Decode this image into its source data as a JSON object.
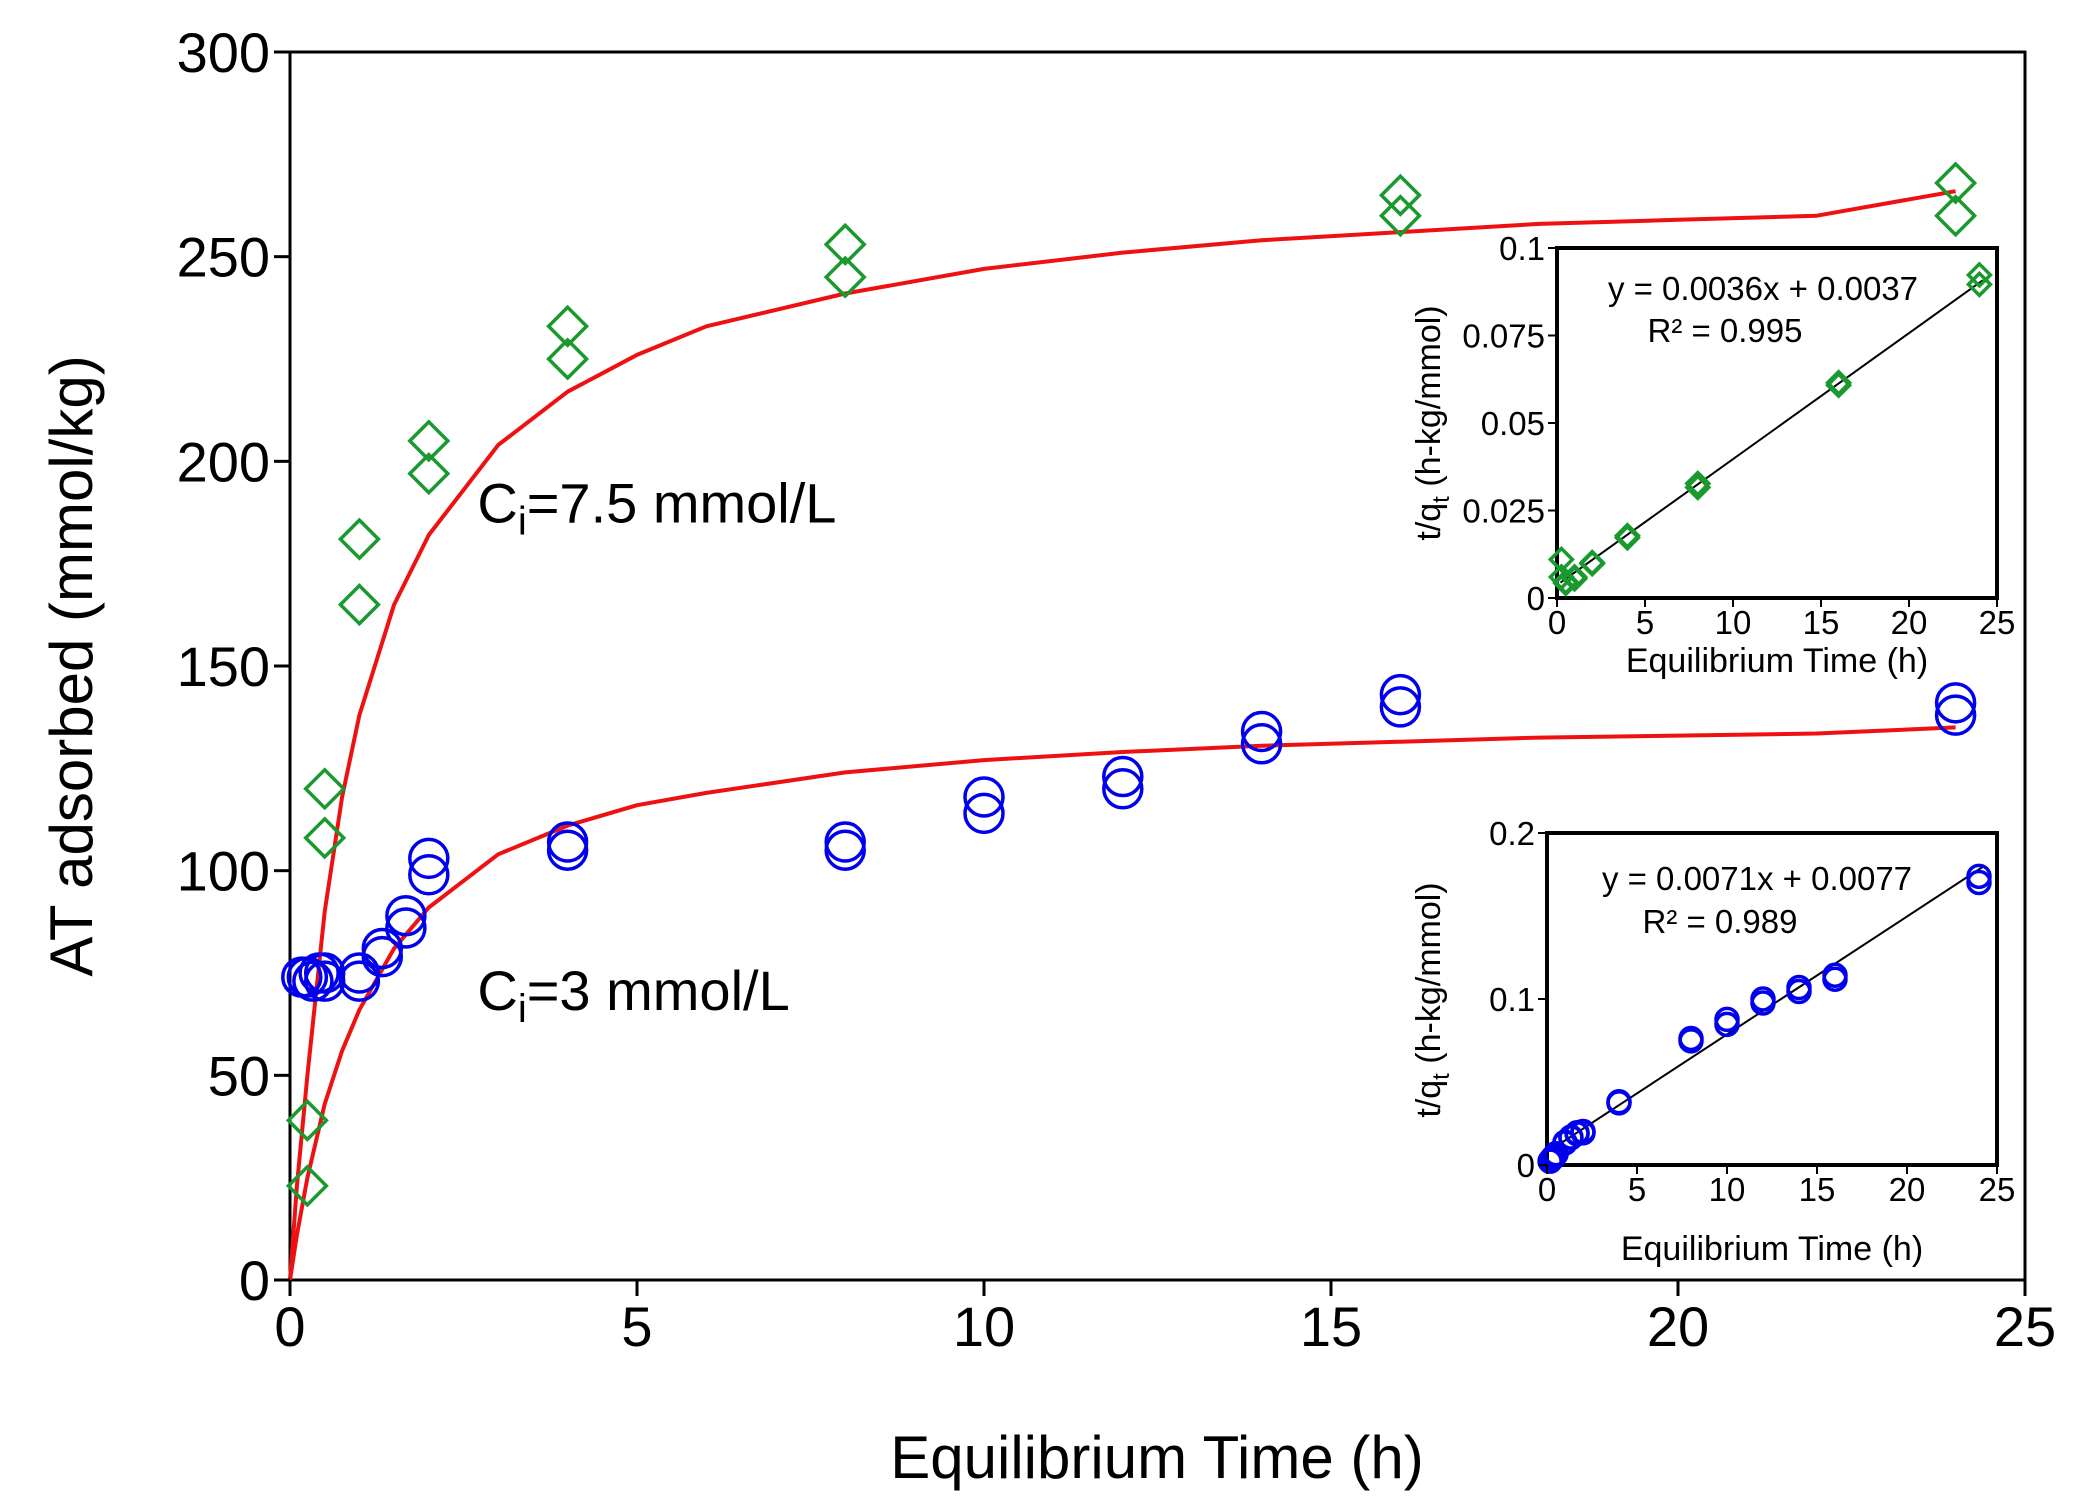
{
  "chart_data": [
    {
      "type": "scatter",
      "xlabel": "Equilibrium Time (h)",
      "ylabel": "AT adsorbed (mmol/kg)",
      "xlim": [
        0,
        25
      ],
      "ylim": [
        0,
        300
      ],
      "xticks": [
        "0",
        "5",
        "10",
        "15",
        "20",
        "25"
      ],
      "yticks": [
        "0",
        "50",
        "100",
        "150",
        "200",
        "250",
        "300"
      ],
      "grid": false,
      "legend": "none",
      "annotations": [
        {
          "id": "ci75",
          "base": "C",
          "sub": "i",
          "rest": "=7.5 mmol/L",
          "x": 2.7,
          "y": 185
        },
        {
          "id": "ci3",
          "base": "C",
          "sub": "i",
          "rest": "=3 mmol/L",
          "x": 2.7,
          "y": 66
        }
      ],
      "series": [
        {
          "id": "hi_points",
          "marker": "diamond",
          "color": "#1a9a2e",
          "x": [
            0.25,
            0.25,
            0.5,
            0.5,
            1,
            1,
            2,
            2,
            4,
            4,
            8,
            8,
            16,
            16,
            24,
            24
          ],
          "y": [
            23,
            39,
            108,
            120,
            165,
            181,
            197,
            205,
            225,
            233,
            245,
            253,
            260,
            265,
            260,
            268
          ]
        },
        {
          "id": "lo_points",
          "marker": "circle",
          "color": "#0000ee",
          "x": [
            0.17,
            0.25,
            0.33,
            0.42,
            0.5,
            0.5,
            1,
            1,
            1.33,
            1.33,
            1.67,
            1.67,
            2,
            2,
            4,
            4,
            8,
            8,
            10,
            10,
            12,
            12,
            14,
            14,
            16,
            16,
            24,
            24
          ],
          "y": [
            74,
            74,
            73,
            75,
            73,
            75,
            73,
            75,
            79,
            81,
            86,
            89,
            99,
            103,
            105,
            107,
            105,
            107,
            114,
            118,
            120,
            123,
            131,
            134,
            140,
            143,
            138,
            141
          ]
        },
        {
          "id": "hi_fit",
          "kind": "line",
          "color": "#ee1111",
          "x": [
            0,
            0.1,
            0.25,
            0.5,
            0.75,
            1,
            1.5,
            2,
            3,
            4,
            5,
            6,
            8,
            10,
            12,
            14,
            16,
            18,
            20,
            22,
            24
          ],
          "y": [
            0,
            23,
            50,
            90,
            118,
            138,
            165,
            182,
            204,
            217,
            226,
            233,
            241,
            247,
            251,
            254,
            256,
            258,
            259,
            260,
            266
          ]
        },
        {
          "id": "lo_fit",
          "kind": "line",
          "color": "#ee1111",
          "x": [
            0,
            0.1,
            0.25,
            0.5,
            0.75,
            1,
            1.5,
            2,
            3,
            4,
            5,
            6,
            8,
            10,
            12,
            14,
            16,
            18,
            20,
            22,
            24
          ],
          "y": [
            0,
            11,
            25,
            43,
            56,
            66,
            81,
            91,
            104,
            111,
            116,
            119,
            124,
            127,
            129,
            130.5,
            131.5,
            132.5,
            133,
            133.5,
            135
          ]
        }
      ]
    },
    {
      "type": "scatter",
      "id": "inset_top",
      "xlabel": "Equilibrium Time (h)",
      "ylabel_base": "t/q",
      "ylabel_sub": "t",
      "ylabel_rest": " (h-kg/mmol)",
      "xlim": [
        0,
        25
      ],
      "ylim": [
        0,
        0.1
      ],
      "xticks": [
        "0",
        "5",
        "10",
        "15",
        "20",
        "25"
      ],
      "yticks": [
        "0",
        "0.025",
        "0.05",
        "0.075",
        "0.1"
      ],
      "equation": "y = 0.0036x + 0.0037",
      "r2": "R² = 0.995",
      "grid": false,
      "series": [
        {
          "id": "inset_top_points",
          "marker": "diamond",
          "color": "#1a9a2e",
          "x": [
            0.25,
            0.25,
            0.5,
            0.5,
            1,
            1,
            2,
            2,
            4,
            4,
            8,
            8,
            16,
            16,
            24,
            24
          ],
          "y": [
            0.011,
            0.006,
            0.0046,
            0.0042,
            0.006,
            0.0055,
            0.0101,
            0.0098,
            0.0178,
            0.0172,
            0.0327,
            0.0316,
            0.0615,
            0.0608,
            0.0923,
            0.0896
          ]
        },
        {
          "id": "inset_top_fit",
          "kind": "line",
          "color": "#000000",
          "x": [
            0.2,
            24.2
          ],
          "y": [
            0.0044,
            0.0908
          ]
        }
      ]
    },
    {
      "type": "scatter",
      "id": "inset_bottom",
      "xlabel": "Equilibrium Time (h)",
      "ylabel_base": "t/q",
      "ylabel_sub": "t",
      "ylabel_rest": " (h-kg/mmol)",
      "xlim": [
        0,
        25
      ],
      "ylim": [
        0,
        0.2
      ],
      "xticks": [
        "0",
        "5",
        "10",
        "15",
        "20",
        "25"
      ],
      "yticks": [
        "0",
        "0.1",
        "0.2"
      ],
      "equation": "y = 0.0071x + 0.0077",
      "r2": "R² = 0.989",
      "grid": false,
      "series": [
        {
          "id": "inset_bottom_points",
          "marker": "circle",
          "color": "#0000ee",
          "x": [
            0.17,
            0.25,
            0.33,
            0.42,
            0.5,
            0.5,
            1,
            1,
            1.33,
            1.33,
            1.67,
            1.67,
            2,
            2,
            4,
            4,
            8,
            8,
            10,
            10,
            12,
            12,
            14,
            14,
            16,
            16,
            24,
            24
          ],
          "y": [
            0.0023,
            0.0034,
            0.0045,
            0.0056,
            0.0068,
            0.0067,
            0.0137,
            0.0133,
            0.0168,
            0.0164,
            0.0194,
            0.0188,
            0.0202,
            0.0194,
            0.0381,
            0.0374,
            0.0762,
            0.0748,
            0.0877,
            0.0847,
            0.1,
            0.0976,
            0.1069,
            0.1045,
            0.1143,
            0.1119,
            0.1739,
            0.1702
          ]
        },
        {
          "id": "inset_bottom_fit",
          "kind": "line",
          "color": "#000000",
          "x": [
            0.1,
            24.2
          ],
          "y": [
            0.0084,
            0.1795
          ]
        }
      ]
    }
  ]
}
